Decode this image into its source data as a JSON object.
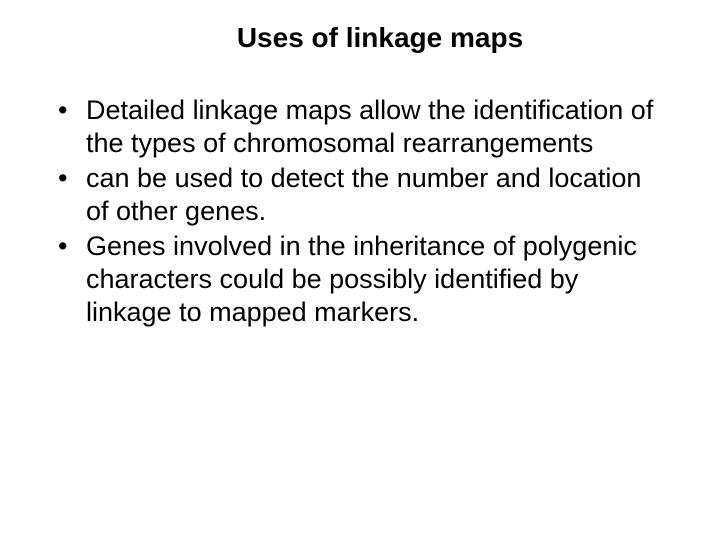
{
  "slide": {
    "title": "Uses of linkage maps",
    "bullets": [
      "Detailed  linkage maps allow the identification of the types of chromosomal rearrangements",
      "can be used to detect the number and location of other genes.",
      "Genes involved in the inheritance of polygenic characters could be  possibly identified by linkage to mapped markers."
    ],
    "colors": {
      "background": "#ffffff",
      "text": "#000000"
    },
    "typography": {
      "title_fontsize": 28,
      "title_weight": "bold",
      "body_fontsize": 27,
      "font_family": "Arial"
    }
  }
}
